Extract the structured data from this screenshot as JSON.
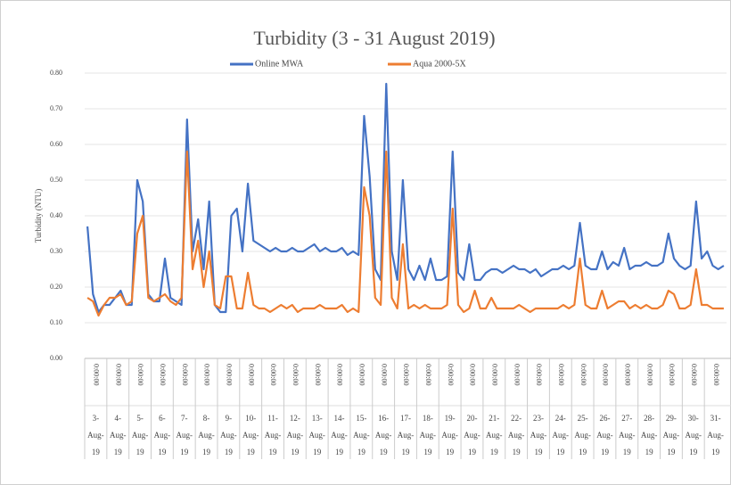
{
  "chart_data": {
    "type": "line",
    "title": "Turbidity (3 - 31 August 2019)",
    "y_label": "Turbidity (NTU)",
    "categories": [
      "3-Aug-19",
      null,
      null,
      null,
      "4-Aug-19",
      null,
      null,
      null,
      "5-Aug-19",
      null,
      null,
      null,
      "6-Aug-19",
      null,
      null,
      null,
      "7-Aug-19",
      null,
      null,
      null,
      "8-Aug-19",
      null,
      null,
      null,
      "9-Aug-19",
      null,
      null,
      null,
      "10-Aug-19",
      null,
      null,
      null,
      "11-Aug-19",
      null,
      null,
      null,
      "12-Aug-19",
      null,
      null,
      null,
      "13-Aug-19",
      null,
      null,
      null,
      "14-Aug-19",
      null,
      null,
      null,
      "15-Aug-19",
      null,
      null,
      null,
      "16-Aug-19",
      null,
      null,
      null,
      "17-Aug-19",
      null,
      null,
      null,
      "18-Aug-19",
      null,
      null,
      null,
      "19-Aug-19",
      null,
      null,
      null,
      "20-Aug-19",
      null,
      null,
      null,
      "21-Aug-19",
      null,
      null,
      null,
      "22-Aug-19",
      null,
      null,
      null,
      "23-Aug-19",
      null,
      null,
      null,
      "24-Aug-19",
      null,
      null,
      null,
      "25-Aug-19",
      null,
      null,
      null,
      "26-Aug-19",
      null,
      null,
      null,
      "27-Aug-19",
      null,
      null,
      null,
      "28-Aug-19",
      null,
      null,
      null,
      "29-Aug-19",
      null,
      null,
      null,
      "30-Aug-19",
      null,
      null,
      null,
      "31-Aug-19",
      null,
      null,
      null
    ],
    "time_labels": [
      "0:00:00",
      "0:00:00",
      "0:00:00",
      "0:00:00",
      "0:00:00",
      "0:00:00",
      "0:00:00",
      "0:00:00",
      "0:00:00",
      "0:00:00",
      "0:00:00",
      "0:00:00",
      "0:00:00",
      "0:00:00",
      "0:00:00",
      "0:00:00",
      "0:00:00",
      "0:00:00",
      "0:00:00",
      "0:00:00",
      "0:00:00",
      "0:00:00",
      "0:00:00",
      "0:00:00",
      "0:00:00",
      "0:00:00",
      "0:00:00",
      "0:00:00",
      "0:00:00"
    ],
    "series": [
      {
        "name": "Online MWA",
        "color": "#4472c4",
        "values": [
          0.37,
          0.18,
          0.13,
          0.15,
          0.15,
          0.17,
          0.19,
          0.15,
          0.15,
          0.5,
          0.44,
          0.18,
          0.16,
          0.16,
          0.28,
          0.17,
          0.16,
          0.15,
          0.67,
          0.3,
          0.39,
          0.25,
          0.44,
          0.15,
          0.13,
          0.13,
          0.4,
          0.42,
          0.3,
          0.49,
          0.33,
          0.32,
          0.31,
          0.3,
          0.31,
          0.3,
          0.3,
          0.31,
          0.3,
          0.3,
          0.31,
          0.32,
          0.3,
          0.31,
          0.3,
          0.3,
          0.31,
          0.29,
          0.3,
          0.29,
          0.68,
          0.51,
          0.25,
          0.22,
          0.77,
          0.3,
          0.22,
          0.5,
          0.25,
          0.22,
          0.26,
          0.22,
          0.28,
          0.22,
          0.22,
          0.23,
          0.58,
          0.24,
          0.22,
          0.32,
          0.22,
          0.22,
          0.24,
          0.25,
          0.25,
          0.24,
          0.25,
          0.26,
          0.25,
          0.25,
          0.24,
          0.25,
          0.23,
          0.24,
          0.25,
          0.25,
          0.26,
          0.25,
          0.26,
          0.38,
          0.26,
          0.25,
          0.25,
          0.3,
          0.25,
          0.27,
          0.26,
          0.31,
          0.25,
          0.26,
          0.26,
          0.27,
          0.26,
          0.26,
          0.27,
          0.35,
          0.28,
          0.26,
          0.25,
          0.26,
          0.44,
          0.28,
          0.3,
          0.26,
          0.25,
          0.26
        ]
      },
      {
        "name": "Aqua 2000-5X",
        "color": "#ed7d31",
        "values": [
          0.17,
          0.16,
          0.12,
          0.15,
          0.17,
          0.17,
          0.18,
          0.15,
          0.16,
          0.35,
          0.4,
          0.17,
          0.16,
          0.17,
          0.18,
          0.16,
          0.15,
          0.17,
          0.58,
          0.25,
          0.33,
          0.2,
          0.3,
          0.15,
          0.14,
          0.23,
          0.23,
          0.14,
          0.14,
          0.24,
          0.15,
          0.14,
          0.14,
          0.13,
          0.14,
          0.15,
          0.14,
          0.15,
          0.13,
          0.14,
          0.14,
          0.14,
          0.15,
          0.14,
          0.14,
          0.14,
          0.15,
          0.13,
          0.14,
          0.13,
          0.48,
          0.4,
          0.17,
          0.15,
          0.58,
          0.17,
          0.14,
          0.32,
          0.14,
          0.15,
          0.14,
          0.15,
          0.14,
          0.14,
          0.14,
          0.15,
          0.42,
          0.15,
          0.13,
          0.14,
          0.19,
          0.14,
          0.14,
          0.17,
          0.14,
          0.14,
          0.14,
          0.14,
          0.15,
          0.14,
          0.13,
          0.14,
          0.14,
          0.14,
          0.14,
          0.14,
          0.15,
          0.14,
          0.15,
          0.28,
          0.15,
          0.14,
          0.14,
          0.19,
          0.14,
          0.15,
          0.16,
          0.16,
          0.14,
          0.15,
          0.14,
          0.15,
          0.14,
          0.14,
          0.15,
          0.19,
          0.18,
          0.14,
          0.14,
          0.15,
          0.25,
          0.15,
          0.15,
          0.14,
          0.14,
          0.14
        ]
      }
    ],
    "ylim": [
      0,
      0.8
    ],
    "yticks": [
      {
        "value": 0,
        "label": "0.00"
      },
      {
        "value": 0.1,
        "label": "0.10"
      },
      {
        "value": 0.2,
        "label": "0.20"
      },
      {
        "value": 0.3,
        "label": "0.30"
      },
      {
        "value": 0.4,
        "label": "0.40"
      },
      {
        "value": 0.5,
        "label": "0.50"
      },
      {
        "value": 0.6,
        "label": "0.60"
      },
      {
        "value": 0.7,
        "label": "0.70"
      },
      {
        "value": 0.8,
        "label": "0.80"
      }
    ],
    "grid": true,
    "legend": "top"
  }
}
